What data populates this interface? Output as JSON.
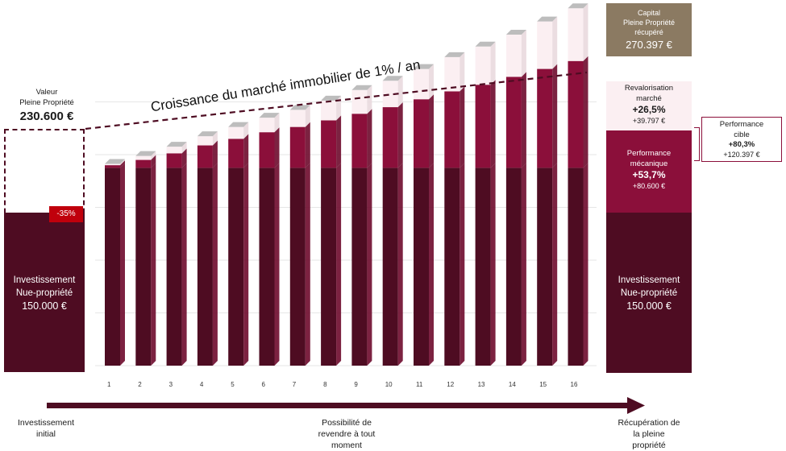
{
  "left": {
    "label_line1": "Valeur",
    "label_line2": "Pleine Propriété",
    "value": "230.600 €",
    "badge": "-35%",
    "invest_line1": "Investissement",
    "invest_line2": "Nue-propriété",
    "invest_value": "150.000 €"
  },
  "right": {
    "capital_line1": "Capital",
    "capital_line2": "Pleine Propriété",
    "capital_line3": "récupéré",
    "capital_value": "270.397 €",
    "reval_line1": "Revalorisation",
    "reval_line2": "marché",
    "reval_pct": "+26,5%",
    "reval_value": "+39.797 €",
    "perf_line1": "Performance",
    "perf_line2": "mécanique",
    "perf_pct": "+53,7%",
    "perf_value": "+80.600 €",
    "invest_line1": "Investissement",
    "invest_line2": "Nue-propriété",
    "invest_value": "150.000 €",
    "target_line1": "Performance",
    "target_line2": "cible",
    "target_pct": "+80,3%",
    "target_value": "+120.397 €"
  },
  "bottom": {
    "start_line1": "Investissement",
    "start_line2": "initial",
    "mid_line1": "Possibilité de",
    "mid_line2": "revendre à tout",
    "mid_line3": "moment",
    "end_line1": "Récupération de",
    "end_line2": "la pleine",
    "end_line3": "propriété"
  },
  "chart_data": {
    "type": "bar",
    "annotation": "Croissance du marché immobilier de 1% / an",
    "categories": [
      "1",
      "2",
      "3",
      "4",
      "5",
      "6",
      "7",
      "8",
      "9",
      "10",
      "11",
      "12",
      "13",
      "14",
      "15",
      "16"
    ],
    "series": [
      {
        "values": [
          150,
          150,
          150,
          150,
          150,
          150,
          150,
          150,
          150,
          150,
          150,
          150,
          150,
          150,
          150,
          150
        ]
      },
      {
        "values": [
          2,
          6,
          11,
          17,
          22,
          27,
          31,
          36,
          41,
          46,
          52,
          58,
          63,
          69,
          75,
          81
        ]
      },
      {
        "values": [
          1,
          3,
          5,
          7,
          9,
          11,
          13,
          15,
          18,
          20,
          23,
          26,
          29,
          32,
          36,
          40
        ]
      }
    ],
    "ylim": [
      0,
      240
    ],
    "grid": true,
    "colors": {
      "base": "#4e0c22",
      "mechanical": "#8b0f3a",
      "market": "#fbeff2",
      "side": "#6e0a2c",
      "top": "#bdbdbd",
      "arrow": "#4e0c22"
    }
  }
}
